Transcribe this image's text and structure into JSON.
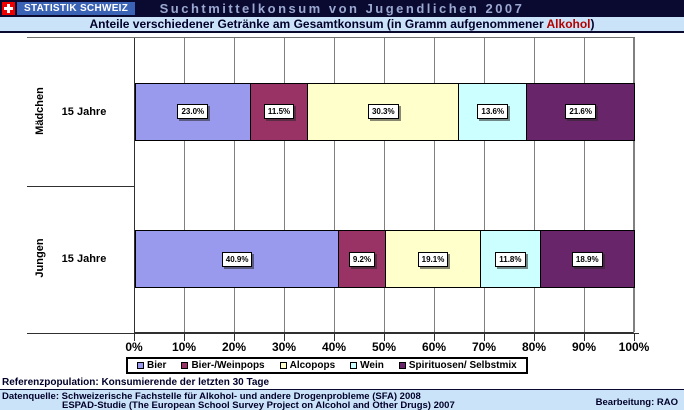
{
  "header": {
    "brand": "STATISTIK SCHWEIZ",
    "title": "Suchtmittelkonsum von Jugendlichen 2007"
  },
  "subtitle": {
    "text_before": "Anteile verschiedener Getränke am Gesamtkonsum (in Gramm aufgenommener ",
    "highlight": "Alkohol",
    "text_after": ")"
  },
  "chart_data": {
    "type": "bar",
    "orientation": "horizontal",
    "stacked": true,
    "categories": [
      "Mädchen",
      "Jungen"
    ],
    "category_sublabels": [
      "15 Jahre",
      "15 Jahre"
    ],
    "series": [
      {
        "name": "Bier",
        "color": "#9999ee",
        "values": [
          23.0,
          40.9
        ]
      },
      {
        "name": "Bier-/Weinpops",
        "color": "#993366",
        "values": [
          11.5,
          9.2
        ]
      },
      {
        "name": "Alcopops",
        "color": "#ffffcc",
        "values": [
          30.3,
          19.1
        ]
      },
      {
        "name": "Wein",
        "color": "#ccffff",
        "values": [
          13.6,
          11.8
        ]
      },
      {
        "name": "Spirituosen/ Selbstmix",
        "color": "#692569",
        "values": [
          21.6,
          18.9
        ]
      }
    ],
    "data_labels": [
      [
        "23.0%",
        "11.5%",
        "30.3%",
        "13.6%",
        "21.6%"
      ],
      [
        "40.9%",
        "9.2%",
        "19.1%",
        "11.8%",
        "18.9%"
      ]
    ],
    "x_ticks": [
      "0%",
      "10%",
      "20%",
      "30%",
      "40%",
      "50%",
      "60%",
      "70%",
      "80%",
      "90%",
      "100%"
    ],
    "xlim": [
      0,
      100
    ],
    "grid": true,
    "legend_position": "bottom"
  },
  "footer": {
    "reference": "Referenzpopulation: Konsumierende der letzten 30 Tage",
    "source_line1": "Datenquelle: Schweizerische Fachstelle für Alkohol- und andere Drogenprobleme (SFA) 2008",
    "source_line2": "ESPAD-Studie (The European School Survey Project on Alcohol and Other Drugs) 2007",
    "editor": "Bearbeitung: RAO"
  }
}
